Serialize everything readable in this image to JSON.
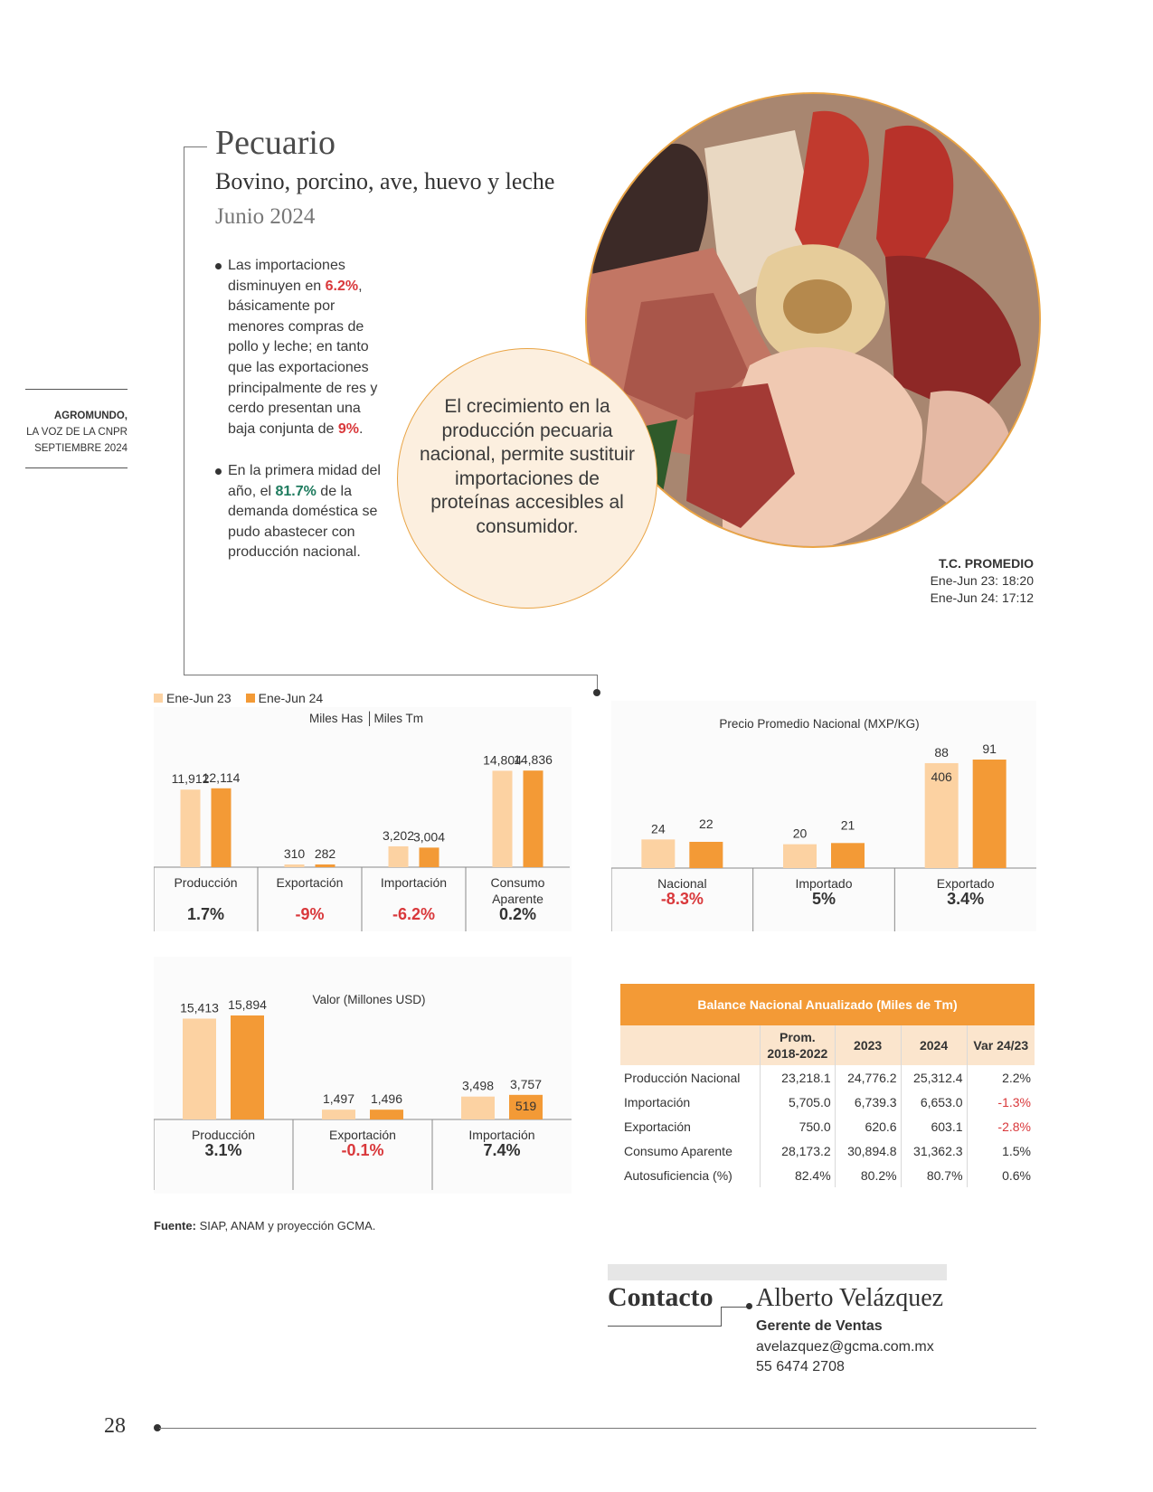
{
  "side_note": {
    "line1": "AGROMUNDO,",
    "line2": "LA VOZ DE LA CNPR",
    "line3": "SEPTIEMBRE 2024"
  },
  "header": {
    "title": "Pecuario",
    "subtitle": "Bovino, porcino, ave, huevo y leche",
    "date": "Junio 2024"
  },
  "bullets": {
    "b1_a": "Las importaciones disminuyen en ",
    "b1_pct1": "6.2%",
    "b1_b": ", básicamente por menores compras de pollo y leche; en tanto que las exportaciones principalmente de res y cerdo presentan una baja conjunta de ",
    "b1_pct2": "9%",
    "b1_c": ".",
    "b2_a": "En la primera midad del año, el ",
    "b2_pct": "81.7%",
    "b2_b": " de la demanda doméstica se pudo abastecer con producción nacional."
  },
  "quote": "El crecimiento en la producción pecuaria nacional, permite sustituir importaciones de proteínas accesibles al consumidor.",
  "tc": {
    "title": "T.C. PROMEDIO",
    "line1": "Ene-Jun 23: 18:20",
    "line2": "Ene-Jun 24: 17:12"
  },
  "legend": {
    "s1": "Ene-Jun 23",
    "s2": "Ene-Jun 24"
  },
  "colors": {
    "light": "#fcd2a2",
    "dark": "#f39a36",
    "red": "#d9383b",
    "green": "#1e7b5e"
  },
  "chart_data": [
    {
      "type": "bar",
      "title": "Miles Has │Miles Tm",
      "categories": [
        "Producción",
        "Exportación",
        "Importación",
        "Consumo Aparente"
      ],
      "series": [
        {
          "name": "Ene-Jun 23",
          "values": [
            11912,
            310,
            3202,
            14804
          ]
        },
        {
          "name": "Ene-Jun 24",
          "values": [
            12114,
            282,
            3004,
            14836
          ]
        }
      ],
      "value_labels": [
        [
          "11,912",
          "310",
          "3,202",
          "14,804"
        ],
        [
          "12,114",
          "282",
          "3,004",
          "14,836"
        ]
      ],
      "changes": [
        "1.7%",
        "-9%",
        "-6.2%",
        "0.2%"
      ],
      "ylim": [
        0,
        15000
      ]
    },
    {
      "type": "bar",
      "title": "Precio Promedio Nacional (MXP/KG)",
      "categories": [
        "Nacional",
        "Importado",
        "Exportado"
      ],
      "series": [
        {
          "name": "Ene-Jun 23",
          "values": [
            24,
            20,
            88
          ]
        },
        {
          "name": "Ene-Jun 24",
          "values": [
            22,
            21,
            91
          ]
        }
      ],
      "value_labels": [
        [
          "24",
          "20",
          "88"
        ],
        [
          "22",
          "21",
          "91"
        ]
      ],
      "inner_label": "406",
      "changes": [
        "-8.3%",
        "5%",
        "3.4%"
      ],
      "ylim": [
        0,
        91
      ]
    },
    {
      "type": "bar",
      "title": "Valor (Millones USD)",
      "categories": [
        "Producción",
        "Exportación",
        "Importación"
      ],
      "series": [
        {
          "name": "Ene-Jun 23",
          "values": [
            15413,
            1497,
            3498
          ]
        },
        {
          "name": "Ene-Jun 24",
          "values": [
            15894,
            1496,
            3757
          ]
        }
      ],
      "value_labels": [
        [
          "15,413",
          "1,497",
          "3,498"
        ],
        [
          "15,894",
          "1,496",
          "3,757"
        ]
      ],
      "inner_label": "519",
      "changes": [
        "3.1%",
        "-0.1%",
        "7.4%"
      ],
      "ylim": [
        0,
        15894
      ]
    }
  ],
  "table": {
    "title": "Balance Nacional Anualizado (Miles de Tm)",
    "headers": [
      "",
      "Prom.\n2018-2022",
      "2023",
      "2024",
      "Var 24/23"
    ],
    "rows": [
      [
        "Producción Nacional",
        "23,218.1",
        "24,776.2",
        "25,312.4",
        "2.2%"
      ],
      [
        "Importación",
        "5,705.0",
        "6,739.3",
        "6,653.0",
        "-1.3%"
      ],
      [
        "Exportación",
        "750.0",
        "620.6",
        "603.1",
        "-2.8%"
      ],
      [
        "Consumo Aparente",
        "28,173.2",
        "30,894.8",
        "31,362.3",
        "1.5%"
      ],
      [
        "Autosuficiencia (%)",
        "82.4%",
        "80.2%",
        "80.7%",
        "0.6%"
      ]
    ]
  },
  "source": {
    "label": "Fuente:",
    "text": " SIAP, ANAM y proyección GCMA."
  },
  "contact": {
    "label": "Contacto",
    "name": "Alberto Velázquez",
    "role": "Gerente de Ventas",
    "email": "avelazquez@gcma.com.mx",
    "phone": "55 6474 2708"
  },
  "page_number": "28"
}
